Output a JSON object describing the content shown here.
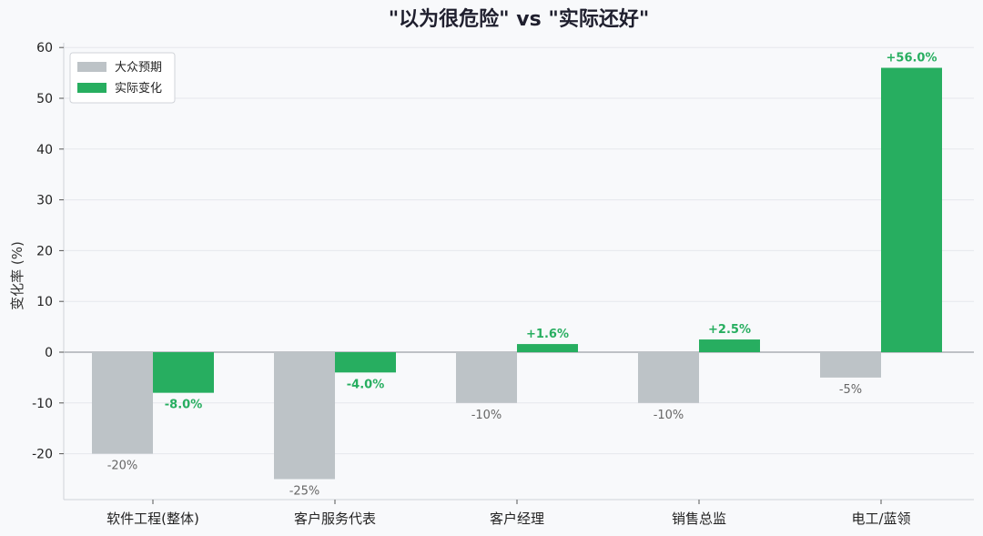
{
  "chart_data": {
    "type": "bar",
    "title": "\"以为很危险\" vs \"实际还好\"",
    "xlabel": "",
    "ylabel": "变化率 (%)",
    "ylim": [
      -29,
      61
    ],
    "yticks": [
      -20,
      -10,
      0,
      10,
      20,
      30,
      40,
      50,
      60
    ],
    "grid": true,
    "legend_position": "top-left",
    "categories": [
      "软件工程(整体)",
      "客户服务代表",
      "客户经理",
      "销售总监",
      "电工/蓝领"
    ],
    "series": [
      {
        "name": "大众预期",
        "color": "#bdc3c7",
        "values": [
          -20,
          -25,
          -10,
          -10,
          -5
        ],
        "labels": [
          "-20%",
          "-25%",
          "-10%",
          "-10%",
          "-5%"
        ]
      },
      {
        "name": "实际变化",
        "color": "#27ae60",
        "values": [
          -8.0,
          -4.0,
          1.6,
          2.5,
          56.0
        ],
        "labels": [
          "-8.0%",
          "-4.0%",
          "+1.6%",
          "+2.5%",
          "+56.0%"
        ]
      }
    ]
  }
}
